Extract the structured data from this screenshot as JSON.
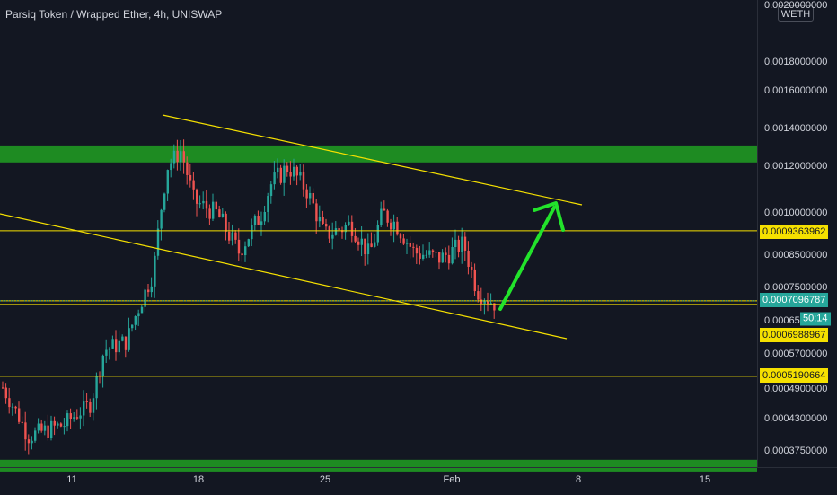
{
  "title": "Parsiq Token / Wrapped Ether, 4h, UNISWAP",
  "currency_badge": "WETH",
  "colors": {
    "background": "#131722",
    "up": "#26a69a",
    "down": "#ef5350",
    "support_zone": "#1e8b22",
    "level_line": "#f5e000",
    "arrow": "#22e32b"
  },
  "chart_data": {
    "type": "candlestick",
    "symbol": "PRQ/WETH",
    "timeframe": "4h",
    "exchange": "UNISWAP",
    "price_ticks": [
      "0.0020000000",
      "0.0018000000",
      "0.0016000000",
      "0.0014000000",
      "0.0012000000",
      "0.0010000000",
      "0.0008500000",
      "0.0007500000",
      "0.0006500000",
      "0.0005700000",
      "0.0004900000",
      "0.0004300000",
      "0.0003750000"
    ],
    "time_ticks": [
      "11",
      "18",
      "25",
      "Feb",
      "8",
      "15"
    ],
    "horizontal_levels": [
      0.0009363962,
      0.0007096787,
      0.0006988967,
      0.0005190664
    ],
    "zones": [
      {
        "from": 0.00122,
        "to": 0.00131
      },
      {
        "from": 0.00034,
        "to": 0.00036
      }
    ],
    "current_price": "0.0007096787",
    "countdown": "50:14",
    "price_labels": [
      {
        "text": "0.0009363962",
        "style": "level"
      },
      {
        "text": "0.0007096787",
        "style": "current"
      },
      {
        "text": "0.0006988967",
        "style": "level"
      },
      {
        "text": "0.0005190664",
        "style": "level"
      }
    ]
  }
}
